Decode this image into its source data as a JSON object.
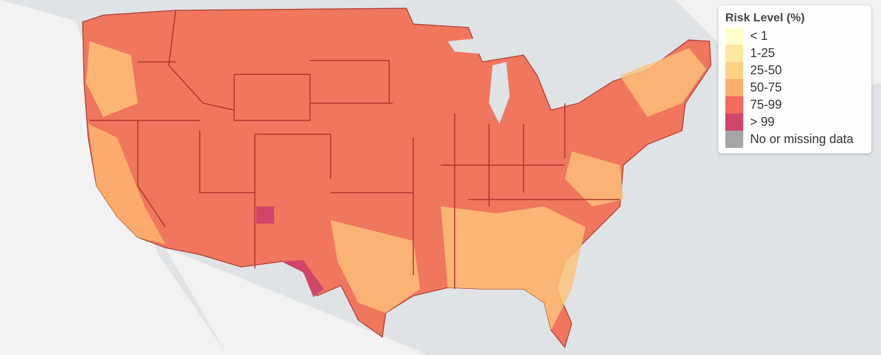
{
  "legend": {
    "title": "Risk Level (%)",
    "items": [
      {
        "label": "< 1",
        "color": "#ffffcc"
      },
      {
        "label": "1-25",
        "color": "#fee8a0"
      },
      {
        "label": "25-50",
        "color": "#fed286"
      },
      {
        "label": "50-75",
        "color": "#fdae6b"
      },
      {
        "label": "75-99",
        "color": "#f26c58"
      },
      {
        "label": "> 99",
        "color": "#d1456a"
      },
      {
        "label": "No or missing data",
        "color": "#a6a6a6"
      }
    ]
  }
}
